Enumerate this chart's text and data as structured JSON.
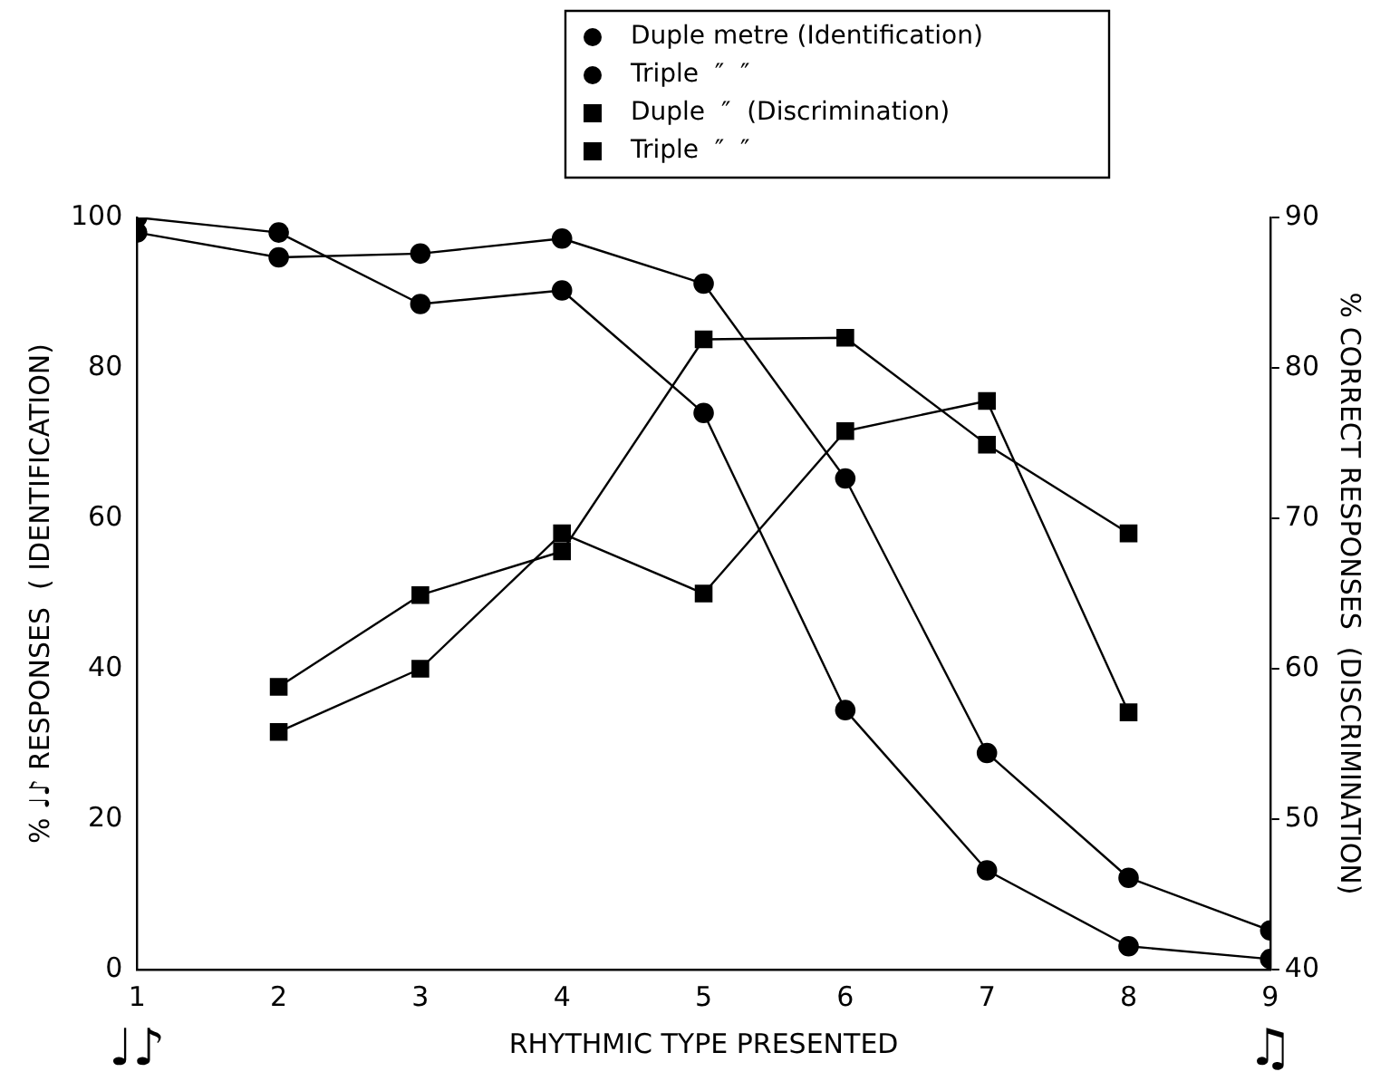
{
  "chart_data": {
    "type": "line",
    "xlabel": "RHYTHMIC TYPE PRESENTED",
    "ylabel": "% ♩♪ RESPONSES  ( IDENTIFICATION)",
    "y2label": "% CORRECT RESPONSES  (DISCRIMINATION)",
    "x": [
      1,
      2,
      3,
      4,
      5,
      6,
      7,
      8,
      9
    ],
    "xlim": [
      1,
      9
    ],
    "xticks": [
      1,
      2,
      3,
      4,
      5,
      6,
      7,
      8,
      9
    ],
    "ylim": [
      0,
      100
    ],
    "yticks": [
      0,
      20,
      40,
      60,
      80,
      100
    ],
    "y2lim": [
      40,
      90
    ],
    "y2ticks": [
      40,
      50,
      60,
      70,
      80,
      90
    ],
    "grid": false,
    "legend": "top",
    "line_style": "solid",
    "annotations": [
      "♩♪",
      "♫"
    ],
    "series": [
      {
        "name": "Duple metre (Identification)",
        "color": "#000000",
        "marker": "circle",
        "values": [
          100,
          98,
          88.5,
          90.3,
          74,
          34.5,
          13.2,
          3.1,
          1.4
        ]
      },
      {
        "name": "Triple  ″  ″",
        "color": "#000000",
        "marker": "circle",
        "values": [
          98,
          94.7,
          95.2,
          97.2,
          91.2,
          65.3,
          28.8,
          12.2,
          5.2
        ]
      },
      {
        "name": "Duple  ″  (Discrimination)",
        "color": "#000000",
        "marker": "square",
        "axis": "y2",
        "values": [
          null,
          58.8,
          64.9,
          67.8,
          81.9,
          82,
          74.9,
          69,
          null
        ]
      },
      {
        "name": "Triple  ″  ″",
        "color": "#000000",
        "marker": "square",
        "axis": "y2",
        "values": [
          null,
          55.8,
          60,
          69,
          65,
          75.8,
          77.8,
          57.1,
          null
        ]
      }
    ]
  }
}
